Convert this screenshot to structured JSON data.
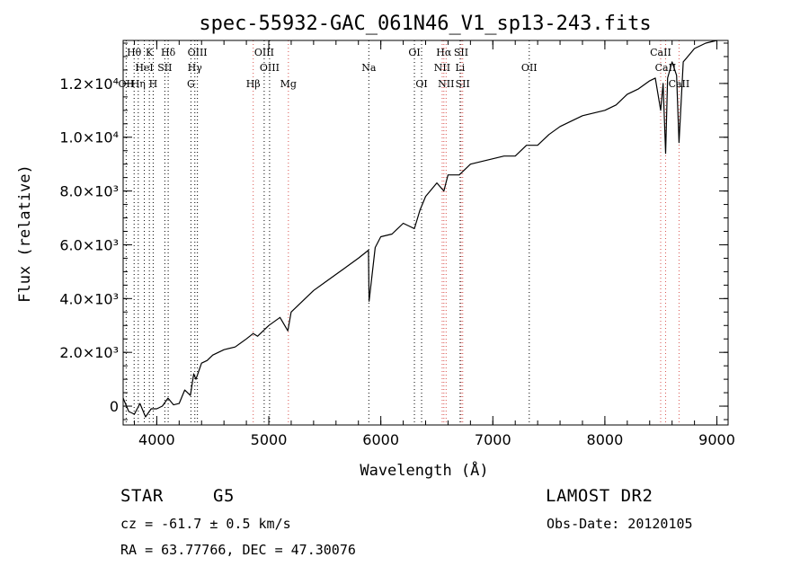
{
  "chart_data": {
    "type": "line",
    "title": "spec-55932-GAC_061N46_V1_sp13-243.fits",
    "xlabel": "Wavelength (Å)",
    "ylabel": "Flux (relative)",
    "xlim": [
      3700,
      9100
    ],
    "ylim": [
      -700,
      13600
    ],
    "x_ticks": [
      {
        "value": 4000,
        "label": "4000"
      },
      {
        "value": 5000,
        "label": "5000"
      },
      {
        "value": 6000,
        "label": "6000"
      },
      {
        "value": 7000,
        "label": "7000"
      },
      {
        "value": 8000,
        "label": "8000"
      },
      {
        "value": 9000,
        "label": "9000"
      }
    ],
    "y_ticks": [
      {
        "value": 0,
        "label": "0"
      },
      {
        "value": 2000,
        "label": "2.0×10³"
      },
      {
        "value": 4000,
        "label": "4.0×10³"
      },
      {
        "value": 6000,
        "label": "6.0×10³"
      },
      {
        "value": 8000,
        "label": "8.0×10³"
      },
      {
        "value": 10000,
        "label": "1.0×10⁴"
      },
      {
        "value": 12000,
        "label": "1.2×10⁴"
      }
    ],
    "series": [
      {
        "x": [
          3700,
          3750,
          3800,
          3850,
          3900,
          3950,
          4000,
          4050,
          4100,
          4150,
          4200,
          4250,
          4300,
          4330,
          4350,
          4400,
          4450,
          4500,
          4600,
          4700,
          4800,
          4861,
          4900,
          5000,
          5100,
          5170,
          5200,
          5300,
          5400,
          5500,
          5600,
          5700,
          5800,
          5890,
          5895,
          5950,
          6000,
          6100,
          6200,
          6250,
          6300,
          6350,
          6400,
          6500,
          6563,
          6600,
          6700,
          6800,
          6900,
          7000,
          7100,
          7200,
          7300,
          7400,
          7500,
          7600,
          7700,
          7800,
          7900,
          8000,
          8100,
          8200,
          8300,
          8400,
          8450,
          8498,
          8520,
          8542,
          8560,
          8600,
          8640,
          8662,
          8700,
          8800,
          8900,
          9000
        ],
        "y": [
          300,
          -200,
          -300,
          100,
          -400,
          -100,
          -100,
          0,
          300,
          50,
          100,
          600,
          400,
          1200,
          1000,
          1600,
          1700,
          1900,
          2100,
          2200,
          2500,
          2700,
          2600,
          3000,
          3300,
          2800,
          3500,
          3900,
          4300,
          4600,
          4900,
          5200,
          5500,
          5800,
          3900,
          5900,
          6300,
          6400,
          6800,
          6700,
          6600,
          7300,
          7800,
          8300,
          8000,
          8600,
          8600,
          9000,
          9100,
          9200,
          9300,
          9300,
          9700,
          9700,
          10100,
          10400,
          10600,
          10800,
          10900,
          11000,
          11200,
          11600,
          11800,
          12100,
          12200,
          11000,
          12000,
          9400,
          12200,
          12800,
          12300,
          9800,
          12800,
          13300,
          13500,
          13600
        ]
      }
    ],
    "lines": [
      {
        "label": "Hθ",
        "wavelength": 3798,
        "color": "#000000",
        "row": 1
      },
      {
        "label": "K",
        "wavelength": 3934,
        "color": "#000000",
        "row": 1
      },
      {
        "label": "Hδ",
        "wavelength": 4102,
        "color": "#000000",
        "row": 1
      },
      {
        "label": "OIII",
        "wavelength": 4363,
        "color": "#000000",
        "row": 1
      },
      {
        "label": "OIII",
        "wavelength": 4959,
        "color": "#000000",
        "row": 1
      },
      {
        "label": "OI",
        "wavelength": 6300,
        "color": "#000000",
        "row": 1
      },
      {
        "label": "Hα",
        "wavelength": 6563,
        "color": "#d9534f",
        "row": 1
      },
      {
        "label": "SII",
        "wavelength": 6717,
        "color": "#d9534f",
        "row": 1
      },
      {
        "label": "CaII",
        "wavelength": 8498,
        "color": "#d9534f",
        "row": 1
      },
      {
        "label": "HeI",
        "wavelength": 3889,
        "color": "#000000",
        "row": 2
      },
      {
        "label": "SII",
        "wavelength": 4072,
        "color": "#000000",
        "row": 2
      },
      {
        "label": "Hγ",
        "wavelength": 4340,
        "color": "#000000",
        "row": 2
      },
      {
        "label": "OIII",
        "wavelength": 5007,
        "color": "#000000",
        "row": 2
      },
      {
        "label": "Na",
        "wavelength": 5893,
        "color": "#000000",
        "row": 2
      },
      {
        "label": "NII",
        "wavelength": 6548,
        "color": "#d9534f",
        "row": 2
      },
      {
        "label": "Li",
        "wavelength": 6708,
        "color": "#000000",
        "row": 2
      },
      {
        "label": "OII",
        "wavelength": 7325,
        "color": "#000000",
        "row": 2
      },
      {
        "label": "CaII",
        "wavelength": 8542,
        "color": "#d9534f",
        "row": 2
      },
      {
        "label": "OII",
        "wavelength": 3727,
        "color": "#000000",
        "row": 3
      },
      {
        "label": "Hη",
        "wavelength": 3835,
        "color": "#000000",
        "row": 3
      },
      {
        "label": "H",
        "wavelength": 3968,
        "color": "#000000",
        "row": 3
      },
      {
        "label": "G",
        "wavelength": 4305,
        "color": "#000000",
        "row": 3
      },
      {
        "label": "Hβ",
        "wavelength": 4861,
        "color": "#d9534f",
        "row": 3
      },
      {
        "label": "Mg",
        "wavelength": 5175,
        "color": "#d9534f",
        "row": 3
      },
      {
        "label": "OI",
        "wavelength": 6364,
        "color": "#000000",
        "row": 3
      },
      {
        "label": "NII",
        "wavelength": 6583,
        "color": "#d9534f",
        "row": 3
      },
      {
        "label": "SII",
        "wavelength": 6731,
        "color": "#d9534f",
        "row": 3
      },
      {
        "label": "CaII",
        "wavelength": 8662,
        "color": "#d9534f",
        "row": 3
      }
    ]
  },
  "info": {
    "object_type": "STAR",
    "subclass": "G5",
    "survey": "LAMOST DR2",
    "redshift": "cz = -61.7 ± 0.5 km/s",
    "obs_date": "Obs-Date: 20120105",
    "coords": "RA =  63.77766, DEC =  47.30076"
  }
}
